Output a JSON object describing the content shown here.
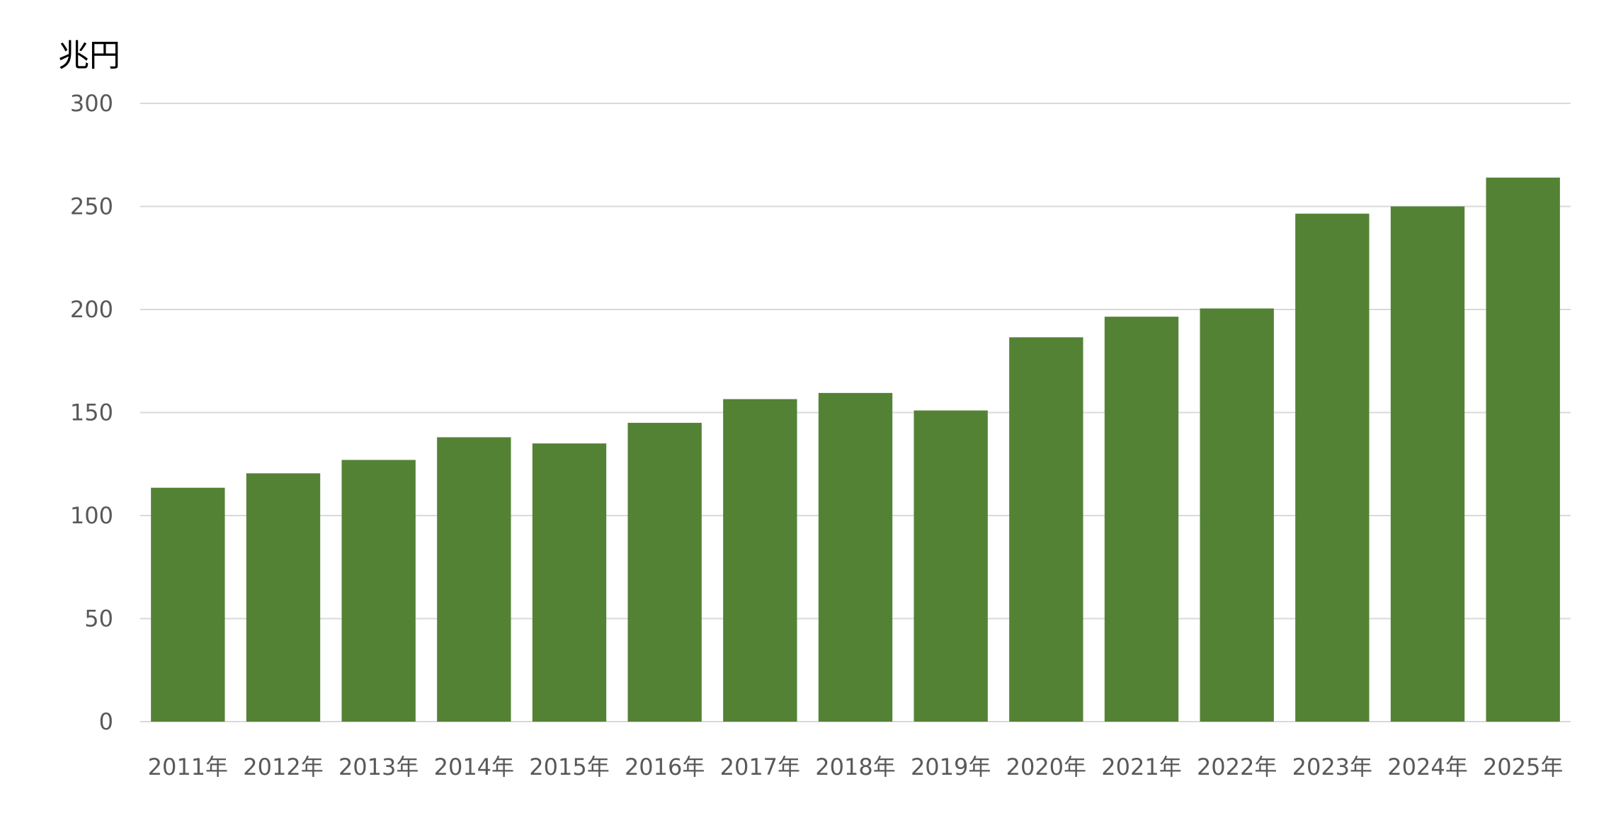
{
  "chart_data": {
    "type": "bar",
    "ylabel": "兆円",
    "categories": [
      "2011年",
      "2012年",
      "2013年",
      "2014年",
      "2015年",
      "2016年",
      "2017年",
      "2018年",
      "2019年",
      "2020年",
      "2021年",
      "2022年",
      "2023年",
      "2024年",
      "2025年"
    ],
    "series": [
      {
        "values": [
          113.5,
          120.5,
          127,
          138,
          135,
          145,
          156.5,
          159.5,
          151,
          186.5,
          196.5,
          200.5,
          246.5,
          250,
          264
        ]
      }
    ],
    "ylim": [
      0,
      300
    ],
    "yticks": [
      0,
      50,
      100,
      150,
      200,
      250,
      300
    ],
    "grid": true,
    "legend": "none",
    "colors": {
      "bar": "#548235",
      "grid": "#d9d9d9",
      "axis": "#d9d9d9",
      "tick_text": "#595959",
      "unit_text": "#000000"
    }
  }
}
